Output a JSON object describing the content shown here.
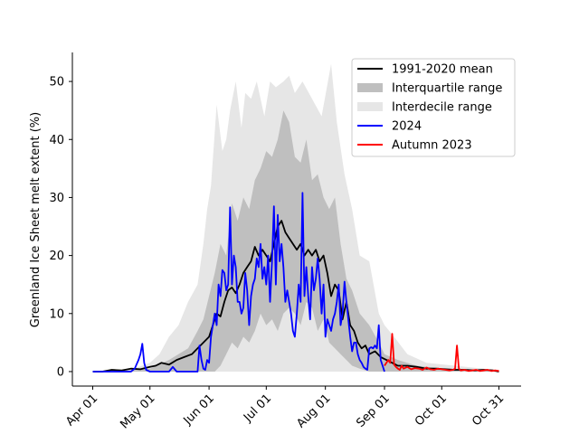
{
  "chart_data": {
    "type": "area",
    "title": "",
    "xlabel": "",
    "ylabel": "Greenland Ice Sheet melt extent (%)",
    "xlim": [
      0,
      213
    ],
    "ylim": [
      -2.5,
      55
    ],
    "x_ticks": [
      {
        "day": 0,
        "label": "Apr 01"
      },
      {
        "day": 30,
        "label": "May 01"
      },
      {
        "day": 61,
        "label": "Jun 01"
      },
      {
        "day": 91,
        "label": "Jul 01"
      },
      {
        "day": 122,
        "label": "Aug 01"
      },
      {
        "day": 153,
        "label": "Sep 01"
      },
      {
        "day": 183,
        "label": "Oct 01"
      },
      {
        "day": 213,
        "label": "Oct 31"
      }
    ],
    "y_ticks": [
      0,
      10,
      20,
      30,
      40,
      50
    ],
    "grid": false,
    "legend_position": "top-right",
    "legend": [
      {
        "label": "1991-2020 mean",
        "kind": "line",
        "color": "#000000"
      },
      {
        "label": "Interquartile range",
        "kind": "patch",
        "color": "#bfbfbf"
      },
      {
        "label": "Interdecile range",
        "kind": "patch",
        "color": "#e6e6e6"
      },
      {
        "label": "2024",
        "kind": "line",
        "color": "#0000ff"
      },
      {
        "label": "Autumn 2023",
        "kind": "line",
        "color": "#ff0000"
      }
    ],
    "interdecile": {
      "x": [
        0,
        20,
        30,
        35,
        40,
        45,
        50,
        55,
        58,
        60,
        62,
        65,
        68,
        70,
        72,
        75,
        78,
        80,
        83,
        86,
        90,
        93,
        96,
        100,
        103,
        106,
        110,
        115,
        120,
        125,
        128,
        132,
        136,
        140,
        145,
        150,
        153,
        158,
        165,
        175,
        190,
        205,
        213
      ],
      "upper": [
        0,
        0.3,
        1.5,
        3,
        6,
        8,
        12,
        15,
        22,
        28,
        32,
        46,
        38,
        40,
        45,
        50,
        42,
        48,
        47,
        50,
        44,
        50,
        49,
        50,
        51,
        48,
        50,
        47,
        44,
        53,
        43,
        34,
        28,
        20,
        19,
        10,
        8,
        6,
        3,
        1.5,
        1,
        0.5,
        0
      ],
      "lower": [
        0,
        0,
        0,
        0,
        0,
        0,
        0,
        0,
        0,
        0,
        0,
        0,
        0,
        0,
        0,
        0,
        0,
        0,
        0,
        0,
        0,
        0,
        0,
        0,
        0,
        0,
        0,
        0,
        0,
        0,
        0,
        0,
        0,
        0,
        0,
        0,
        0,
        0,
        0,
        0,
        0,
        0,
        0
      ]
    },
    "interquartile": {
      "x": [
        0,
        20,
        30,
        40,
        50,
        55,
        58,
        61,
        64,
        67,
        70,
        73,
        76,
        79,
        82,
        85,
        88,
        91,
        94,
        97,
        100,
        103,
        106,
        109,
        112,
        115,
        118,
        121,
        124,
        127,
        130,
        133,
        136,
        140,
        145,
        150,
        153,
        160,
        170,
        185,
        200,
        213
      ],
      "upper": [
        0,
        0.2,
        0.5,
        2,
        4,
        7,
        9,
        13,
        17,
        22,
        20,
        29,
        26,
        30,
        28,
        33,
        35,
        38,
        37,
        40,
        45,
        43,
        37,
        36,
        40,
        33,
        34,
        30,
        28,
        30,
        22,
        16,
        14,
        10,
        8,
        5,
        3,
        2,
        1,
        0.5,
        0.3,
        0
      ],
      "lower": [
        0,
        0,
        0,
        0,
        0,
        0,
        0,
        0,
        0,
        1,
        3,
        5,
        4,
        6,
        5,
        7,
        10,
        8,
        9,
        7,
        10,
        11,
        10,
        8,
        12,
        11,
        7,
        9,
        5,
        4,
        3,
        2,
        1,
        0.5,
        0,
        0,
        0,
        0,
        0,
        0,
        0,
        0
      ]
    },
    "series": [
      {
        "name": "1991-2020 mean",
        "color": "#000000",
        "x": [
          0,
          5,
          10,
          15,
          20,
          25,
          30,
          33,
          36,
          40,
          44,
          48,
          52,
          55,
          58,
          61,
          63,
          65,
          67,
          69,
          71,
          73,
          75,
          77,
          79,
          81,
          83,
          85,
          87,
          89,
          91,
          93,
          95,
          97,
          99,
          101,
          103,
          105,
          107,
          109,
          111,
          113,
          115,
          117,
          119,
          121,
          123,
          125,
          127,
          129,
          131,
          133,
          135,
          137,
          139,
          141,
          143,
          145,
          148,
          151,
          154,
          157,
          160,
          165,
          170,
          175,
          180,
          185,
          190,
          195,
          200,
          205,
          210,
          213
        ],
        "y": [
          0,
          0,
          0.3,
          0.2,
          0.5,
          0.4,
          0.8,
          1,
          1.5,
          1.2,
          2,
          2.5,
          3,
          4,
          5,
          6,
          8,
          10,
          9.5,
          12,
          14,
          14.5,
          13.5,
          15,
          17,
          18,
          19,
          21.5,
          20,
          21,
          20,
          19,
          22,
          25,
          26,
          24,
          23,
          22,
          21,
          22,
          20,
          21,
          20,
          21,
          19,
          20,
          17,
          13,
          15,
          14,
          9,
          12,
          8,
          7,
          5,
          4,
          4.5,
          3,
          3.5,
          2.5,
          2,
          1.5,
          1,
          1,
          0.8,
          0.5,
          0.5,
          0.4,
          0.3,
          0.3,
          0.2,
          0.3,
          0.2,
          0
        ]
      },
      {
        "name": "2024",
        "color": "#0000ff",
        "x": [
          0,
          10,
          20,
          22,
          24,
          25,
          26,
          27,
          28,
          30,
          35,
          40,
          42,
          44,
          46,
          50,
          55,
          56,
          57,
          58,
          59,
          60,
          61,
          62,
          63,
          64,
          65,
          66,
          67,
          68,
          69,
          70,
          71,
          72,
          73,
          74,
          75,
          76,
          77,
          78,
          79,
          80,
          81,
          82,
          83,
          84,
          85,
          86,
          87,
          88,
          89,
          90,
          91,
          92,
          93,
          94,
          95,
          96,
          97,
          98,
          99,
          100,
          101,
          102,
          103,
          104,
          105,
          106,
          107,
          108,
          109,
          110,
          111,
          112,
          113,
          114,
          115,
          116,
          117,
          118,
          119,
          120,
          121,
          122,
          123,
          124,
          125,
          126,
          127,
          128,
          129,
          130,
          131,
          132,
          133,
          134,
          135,
          136,
          137,
          138,
          139,
          140,
          141,
          142,
          143,
          144,
          145,
          146,
          147,
          148,
          149,
          150,
          151,
          152,
          153
        ],
        "y": [
          0,
          0,
          0,
          0.5,
          2,
          3,
          4.8,
          1.5,
          0.3,
          0,
          0,
          0,
          0.8,
          0,
          0,
          0,
          0,
          4.5,
          2,
          0.5,
          0.3,
          2,
          1.5,
          6,
          8,
          10,
          8,
          15,
          13,
          17.5,
          17,
          14,
          15,
          28.3,
          15,
          20,
          18,
          12,
          12,
          10,
          11,
          17,
          14,
          8,
          13,
          15,
          16,
          19.5,
          18,
          22,
          16,
          18,
          15,
          20,
          12,
          19,
          28.5,
          15,
          27,
          19,
          22,
          18,
          12,
          14,
          12,
          10,
          7,
          6,
          10,
          15,
          12,
          30.8,
          13,
          18,
          13,
          9,
          18,
          14,
          16,
          19.5,
          16,
          10,
          15,
          6,
          9,
          8,
          7,
          9,
          10,
          12,
          15,
          8,
          10,
          15.5,
          12,
          9,
          6,
          3.5,
          5,
          5,
          3,
          2,
          1.5,
          0.8,
          0.5,
          0.3,
          4,
          4.2,
          4,
          4.5,
          4,
          8,
          2,
          1,
          0
        ]
      },
      {
        "name": "Autumn 2023",
        "color": "#ff0000",
        "x": [
          153,
          154,
          155,
          156,
          157,
          158,
          159,
          160,
          161,
          162,
          163,
          165,
          167,
          169,
          171,
          173,
          175,
          177,
          179,
          181,
          183,
          185,
          187,
          189,
          190,
          191,
          192,
          193,
          195,
          197,
          199,
          201,
          203,
          205,
          207,
          209,
          211,
          213
        ],
        "y": [
          1,
          1.5,
          2,
          1.5,
          6.5,
          1.2,
          0.8,
          0.5,
          0.3,
          1,
          0.5,
          0.8,
          0.4,
          0.6,
          0.5,
          0.3,
          0.7,
          0.4,
          0.3,
          0.5,
          0.4,
          0.3,
          0.2,
          0.3,
          0.5,
          4.5,
          0.5,
          0.2,
          0.3,
          0.1,
          0.2,
          0.3,
          0.1,
          0.2,
          0.3,
          0.1,
          0.2,
          0.1
        ]
      }
    ]
  }
}
